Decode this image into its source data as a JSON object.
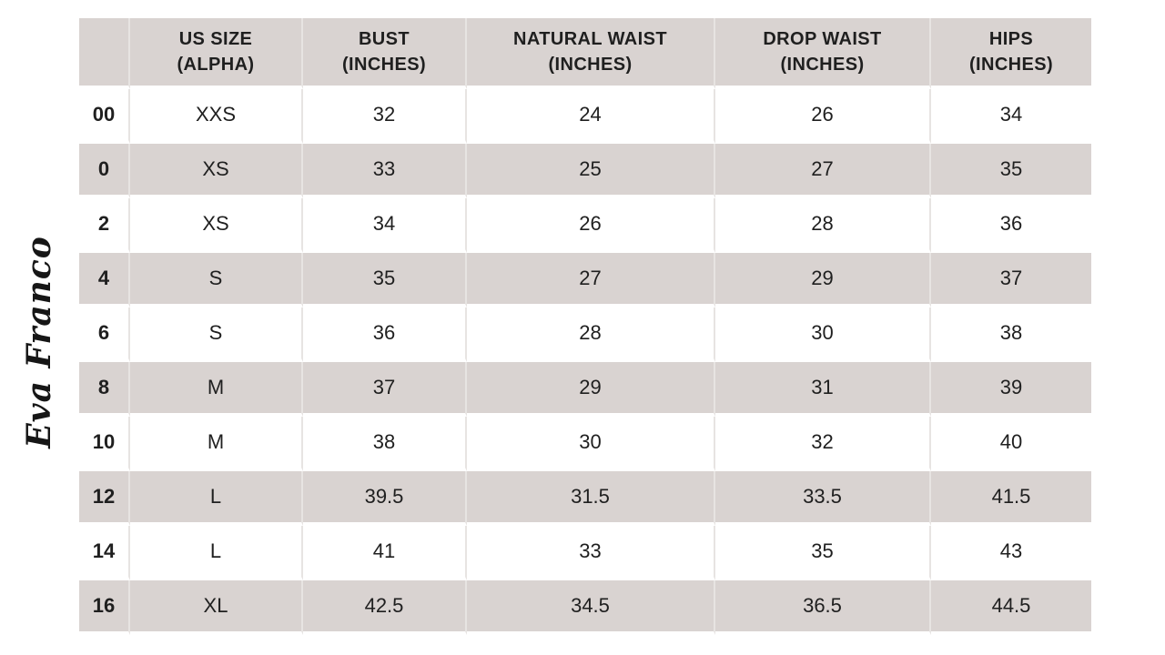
{
  "colors": {
    "background": "#ffffff",
    "header_bg": "#d9d3d1",
    "row_alt_bg": "#d9d3d1",
    "separator": "#e7e4e2",
    "text": "#1f1f1f"
  },
  "logo": {
    "text": "Eva Franco"
  },
  "table": {
    "corner_label": "",
    "headers": [
      {
        "line1": "US SIZE",
        "line2": "(ALPHA)"
      },
      {
        "line1": "BUST",
        "line2": "(INCHES)"
      },
      {
        "line1": "NATURAL WAIST",
        "line2": "(INCHES)"
      },
      {
        "line1": "DROP WAIST",
        "line2": "(INCHES)"
      },
      {
        "line1": "HIPS",
        "line2": "(INCHES)"
      }
    ],
    "rows": [
      {
        "us_size": "00",
        "alpha": "XXS",
        "bust": "32",
        "natural_waist": "24",
        "drop_waist": "26",
        "hips": "34"
      },
      {
        "us_size": "0",
        "alpha": "XS",
        "bust": "33",
        "natural_waist": "25",
        "drop_waist": "27",
        "hips": "35"
      },
      {
        "us_size": "2",
        "alpha": "XS",
        "bust": "34",
        "natural_waist": "26",
        "drop_waist": "28",
        "hips": "36"
      },
      {
        "us_size": "4",
        "alpha": "S",
        "bust": "35",
        "natural_waist": "27",
        "drop_waist": "29",
        "hips": "37"
      },
      {
        "us_size": "6",
        "alpha": "S",
        "bust": "36",
        "natural_waist": "28",
        "drop_waist": "30",
        "hips": "38"
      },
      {
        "us_size": "8",
        "alpha": "M",
        "bust": "37",
        "natural_waist": "29",
        "drop_waist": "31",
        "hips": "39"
      },
      {
        "us_size": "10",
        "alpha": "M",
        "bust": "38",
        "natural_waist": "30",
        "drop_waist": "32",
        "hips": "40"
      },
      {
        "us_size": "12",
        "alpha": "L",
        "bust": "39.5",
        "natural_waist": "31.5",
        "drop_waist": "33.5",
        "hips": "41.5"
      },
      {
        "us_size": "14",
        "alpha": "L",
        "bust": "41",
        "natural_waist": "33",
        "drop_waist": "35",
        "hips": "43"
      },
      {
        "us_size": "16",
        "alpha": "XL",
        "bust": "42.5",
        "natural_waist": "34.5",
        "drop_waist": "36.5",
        "hips": "44.5"
      }
    ]
  }
}
